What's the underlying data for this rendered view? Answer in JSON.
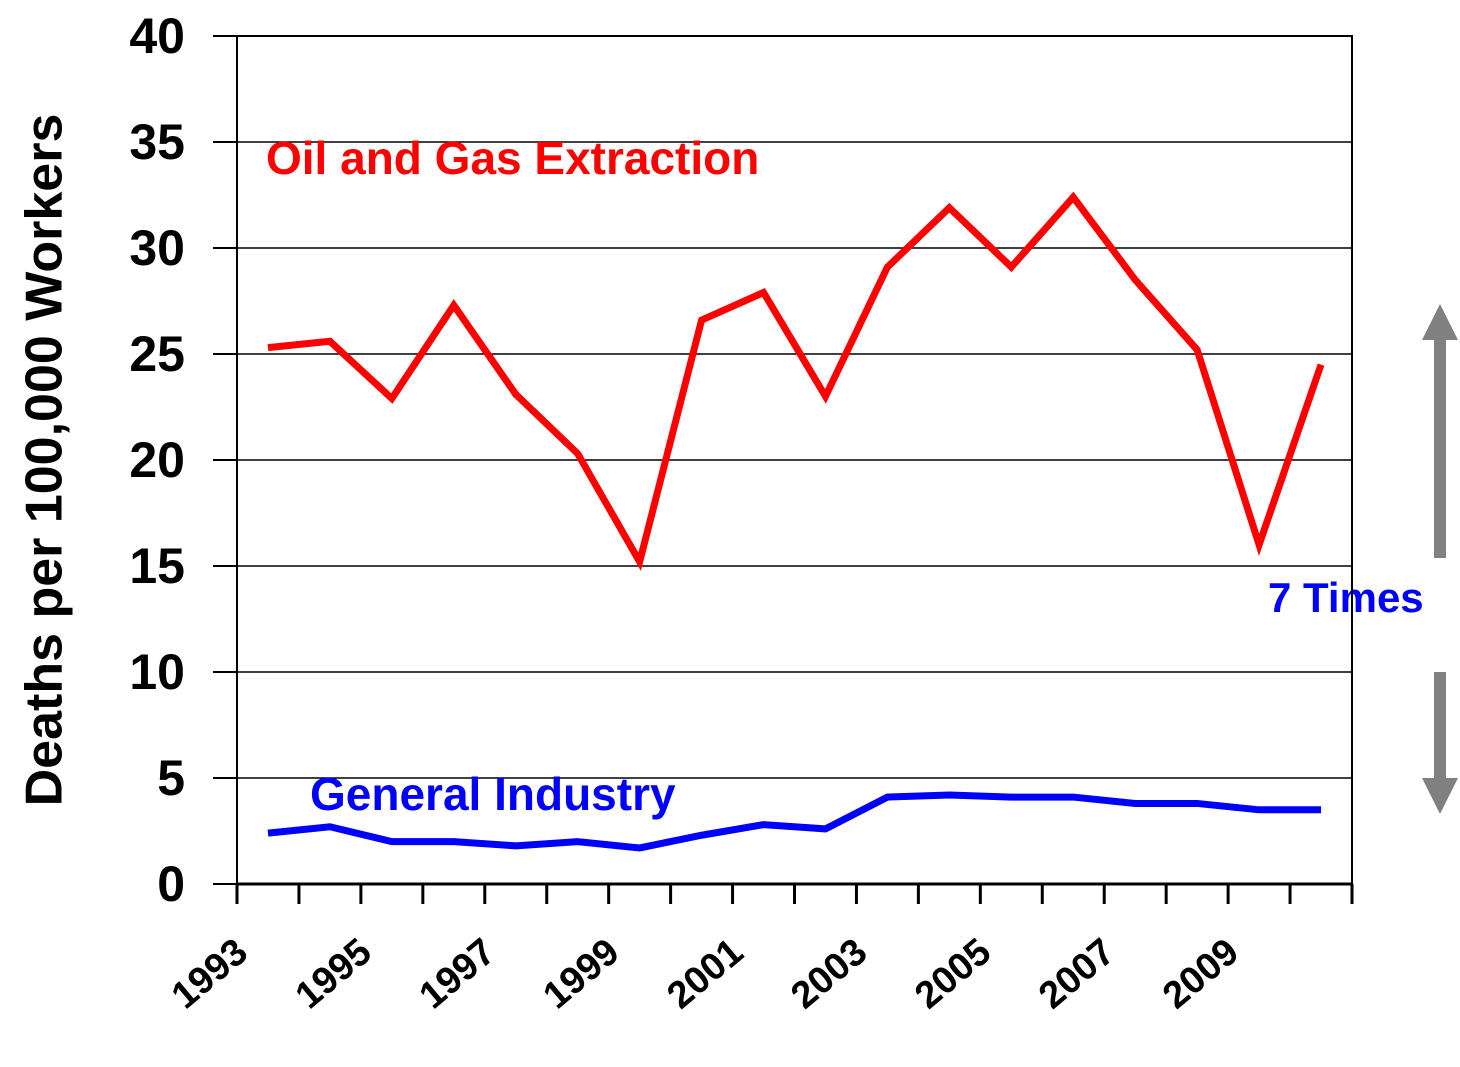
{
  "chart_data": {
    "type": "line",
    "y_label": "Deaths per 100,000 Workers",
    "categories": [
      "1993",
      null,
      "1995",
      null,
      "1997",
      null,
      "1999",
      null,
      "2001",
      null,
      "2003",
      null,
      "2005",
      null,
      "2007",
      null,
      "2009",
      null
    ],
    "series": [
      {
        "name": "Oil and Gas Extraction",
        "color": "#ff0000",
        "values": [
          25.3,
          25.6,
          22.9,
          27.3,
          23.1,
          20.3,
          15.2,
          26.6,
          27.9,
          23.0,
          29.1,
          31.9,
          29.1,
          32.4,
          28.5,
          25.2,
          16.0,
          24.5
        ]
      },
      {
        "name": "General Industry",
        "color": "#0000ff",
        "values": [
          2.4,
          2.7,
          2.0,
          2.0,
          1.8,
          2.0,
          1.7,
          2.3,
          2.8,
          2.6,
          4.1,
          4.2,
          4.1,
          4.1,
          3.8,
          3.8,
          3.5,
          3.5
        ]
      }
    ],
    "annotation": "7 Times",
    "ylim": [
      0,
      40
    ],
    "yticks": [
      0,
      5,
      10,
      15,
      20,
      25,
      30,
      35,
      40
    ],
    "grid": true
  }
}
